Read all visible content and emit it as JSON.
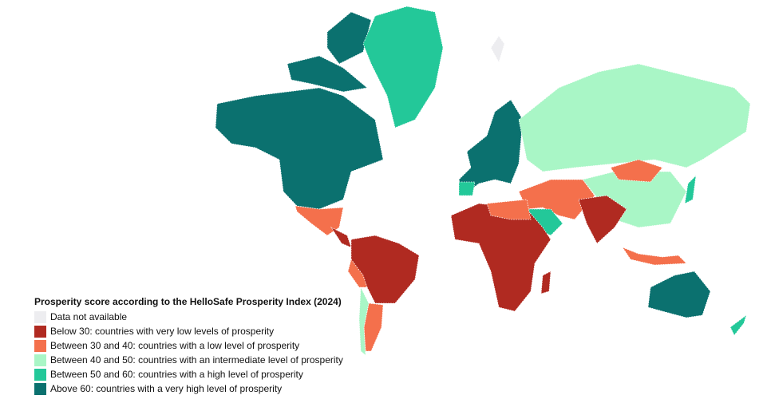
{
  "legend": {
    "title": "Prosperity score according to the HelloSafe Prosperity Index (2024)",
    "items": [
      {
        "label": "Data not available",
        "color": "#ededf0"
      },
      {
        "label": "Below 30: countries with very low levels of prosperity",
        "color": "#b02a21"
      },
      {
        "label": "Between 30 and 40: countries with a low level of prosperity",
        "color": "#f4704c"
      },
      {
        "label": "Between 40 and 50: countries with an intermediate level of prosperity",
        "color": "#a9f6c6"
      },
      {
        "label": "Between 50 and 60: countries with a high level of prosperity",
        "color": "#23c899"
      },
      {
        "label": "Above 60: countries with a very high level of prosperity",
        "color": "#0b716f"
      }
    ]
  }
}
